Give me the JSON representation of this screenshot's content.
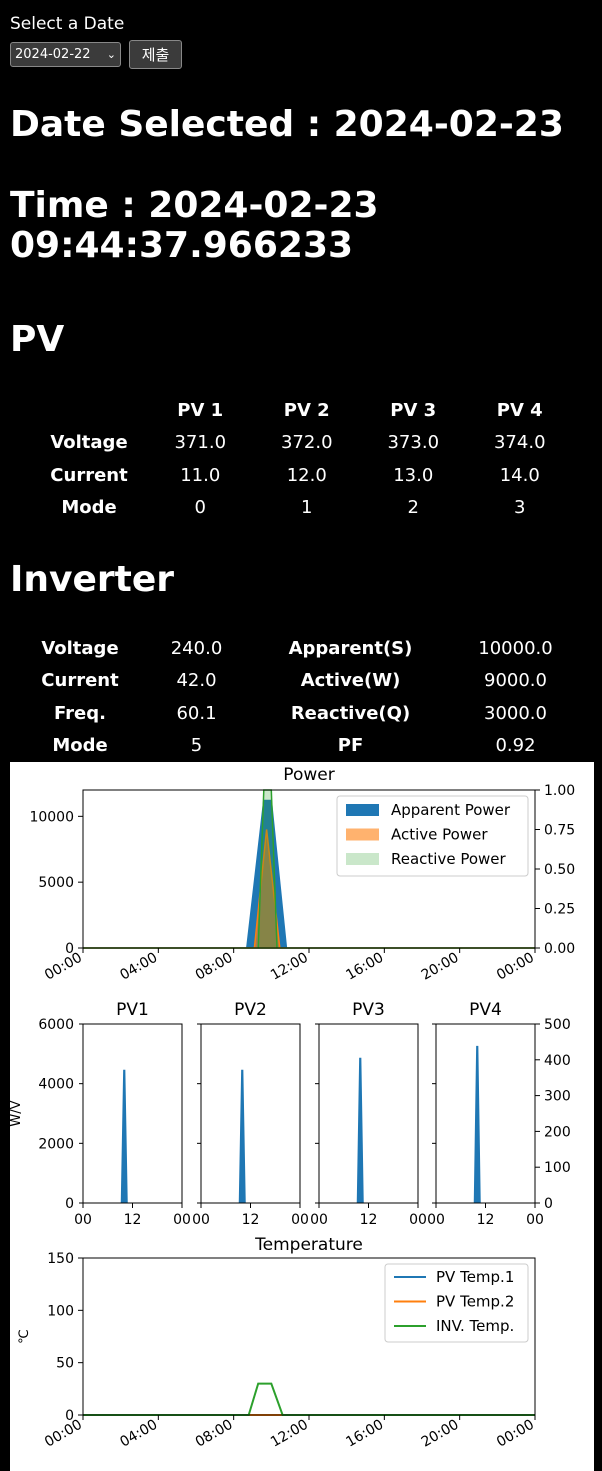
{
  "form": {
    "label": "Select a Date",
    "selected_date": "2024-02-22",
    "submit_label": "제출"
  },
  "headings": {
    "date_selected": "Date Selected : 2024-02-23",
    "time": "Time : 2024-02-23 09:44:37.966233",
    "pv": "PV",
    "inverter": "Inverter"
  },
  "pv_table": {
    "columns": [
      "",
      "PV 1",
      "PV 2",
      "PV 3",
      "PV 4"
    ],
    "rows": [
      {
        "label": "Voltage",
        "values": [
          "371.0",
          "372.0",
          "373.0",
          "374.0"
        ]
      },
      {
        "label": "Current",
        "values": [
          "11.0",
          "12.0",
          "13.0",
          "14.0"
        ]
      },
      {
        "label": "Mode",
        "values": [
          "0",
          "1",
          "2",
          "3"
        ]
      }
    ]
  },
  "inverter_table": {
    "rows": [
      [
        "Voltage",
        "240.0",
        "Apparent(S)",
        "10000.0"
      ],
      [
        "Current",
        "42.0",
        "Active(W)",
        "9000.0"
      ],
      [
        "Freq.",
        "60.1",
        "Reactive(Q)",
        "3000.0"
      ],
      [
        "Mode",
        "5",
        "PF",
        "0.92"
      ]
    ]
  },
  "colors": {
    "apparent": "#1f77b4",
    "active": "#ff7f0e",
    "reactive": "#2ca02c",
    "background": "#000000"
  },
  "chart_data": [
    {
      "type": "area",
      "title": "Power",
      "x_ticks": [
        "00:00",
        "04:00",
        "08:00",
        "12:00",
        "16:00",
        "20:00",
        "00:00"
      ],
      "xlim_hours": [
        0,
        24
      ],
      "ylim": [
        0,
        12000
      ],
      "y_ticks": [
        "0",
        "5000",
        "10000"
      ],
      "y2lim": [
        0,
        1.0
      ],
      "y2_ticks": [
        "0.00",
        "0.25",
        "0.50",
        "0.75",
        "1.00"
      ],
      "legend": "top-right",
      "series": [
        {
          "name": "Apparent Power",
          "points": [
            [
              0,
              0
            ],
            [
              8.7,
              0
            ],
            [
              9.6,
              11200
            ],
            [
              10.0,
              11200
            ],
            [
              10.8,
              0
            ],
            [
              24,
              0
            ]
          ]
        },
        {
          "name": "Active Power",
          "points": [
            [
              0,
              0
            ],
            [
              9.1,
              0
            ],
            [
              9.75,
              9000
            ],
            [
              10.45,
              0
            ],
            [
              24,
              0
            ]
          ]
        },
        {
          "name": "Reactive Power",
          "points": [
            [
              0,
              0
            ],
            [
              9.3,
              0
            ],
            [
              9.6,
              12000
            ],
            [
              10.0,
              12000
            ],
            [
              10.3,
              0
            ],
            [
              24,
              0
            ]
          ]
        }
      ]
    },
    {
      "type": "area",
      "subplots": [
        {
          "title": "PV1",
          "peak_x_hour": 10.0,
          "peak": 4450
        },
        {
          "title": "PV2",
          "peak_x_hour": 10.0,
          "peak": 4450
        },
        {
          "title": "PV3",
          "peak_x_hour": 10.0,
          "peak": 4850
        },
        {
          "title": "PV4",
          "peak_x_hour": 10.0,
          "peak": 5250
        }
      ],
      "ylabel": "W/V",
      "ylim": [
        0,
        6000
      ],
      "y_ticks": [
        "0",
        "2000",
        "4000",
        "6000"
      ],
      "y2lim": [
        0,
        500
      ],
      "y2_ticks": [
        "0",
        "100",
        "200",
        "300",
        "400",
        "500"
      ],
      "x_ticks": [
        "00",
        "12",
        "00"
      ]
    },
    {
      "type": "line",
      "title": "Temperature",
      "ylabel": "℃",
      "ylim": [
        0,
        150
      ],
      "y_ticks": [
        "0",
        "50",
        "100",
        "150"
      ],
      "x_ticks": [
        "00:00",
        "04:00",
        "08:00",
        "12:00",
        "16:00",
        "20:00",
        "00:00"
      ],
      "legend": "top-right",
      "series": [
        {
          "name": "PV Temp.1",
          "points": [
            [
              0,
              0
            ],
            [
              24,
              0
            ]
          ]
        },
        {
          "name": "PV Temp.2",
          "points": [
            [
              0,
              0
            ],
            [
              24,
              0
            ]
          ]
        },
        {
          "name": "INV. Temp.",
          "points": [
            [
              0,
              0
            ],
            [
              8.8,
              0
            ],
            [
              9.3,
              30
            ],
            [
              10.0,
              30
            ],
            [
              10.6,
              0
            ],
            [
              24,
              0
            ]
          ]
        }
      ]
    }
  ]
}
